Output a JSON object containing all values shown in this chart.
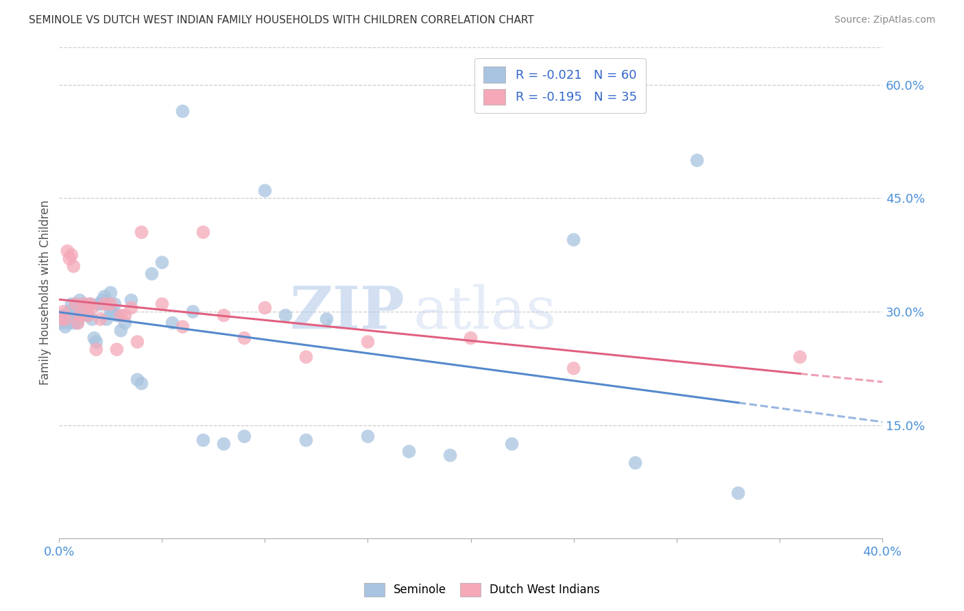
{
  "title": "SEMINOLE VS DUTCH WEST INDIAN FAMILY HOUSEHOLDS WITH CHILDREN CORRELATION CHART",
  "source": "Source: ZipAtlas.com",
  "ylabel_label": "Family Households with Children",
  "right_ytick_pcts": [
    15.0,
    30.0,
    45.0,
    60.0
  ],
  "right_ytick_labels": [
    "15.0%",
    "30.0%",
    "45.0%",
    "60.0%"
  ],
  "xlim": [
    0.0,
    0.4
  ],
  "ylim": [
    0.0,
    0.65
  ],
  "seminole_color": "#a8c4e0",
  "dutch_color": "#f4a8b8",
  "trend_blue": "#5588cc",
  "trend_pink": "#e06080",
  "watermark_zip": "ZIP",
  "watermark_atlas": "atlas",
  "legend_r1": "R = -0.021",
  "legend_n1": "N = 60",
  "legend_r2": "R = -0.195",
  "legend_n2": "N = 35",
  "legend_label1": "Seminole",
  "legend_label2": "Dutch West Indians",
  "seminole_x": [
    0.001,
    0.002,
    0.003,
    0.003,
    0.004,
    0.005,
    0.005,
    0.006,
    0.007,
    0.007,
    0.008,
    0.008,
    0.009,
    0.009,
    0.01,
    0.01,
    0.011,
    0.012,
    0.013,
    0.013,
    0.014,
    0.015,
    0.016,
    0.017,
    0.018,
    0.019,
    0.02,
    0.021,
    0.022,
    0.023,
    0.025,
    0.025,
    0.026,
    0.027,
    0.028,
    0.03,
    0.032,
    0.035,
    0.038,
    0.04,
    0.045,
    0.05,
    0.055,
    0.06,
    0.065,
    0.07,
    0.08,
    0.09,
    0.1,
    0.11,
    0.12,
    0.13,
    0.15,
    0.17,
    0.19,
    0.22,
    0.25,
    0.28,
    0.31,
    0.33
  ],
  "seminole_y": [
    0.285,
    0.295,
    0.28,
    0.29,
    0.285,
    0.3,
    0.29,
    0.31,
    0.295,
    0.285,
    0.31,
    0.295,
    0.3,
    0.285,
    0.315,
    0.3,
    0.295,
    0.31,
    0.305,
    0.3,
    0.295,
    0.31,
    0.29,
    0.265,
    0.26,
    0.31,
    0.31,
    0.315,
    0.32,
    0.29,
    0.325,
    0.3,
    0.3,
    0.31,
    0.295,
    0.275,
    0.285,
    0.315,
    0.21,
    0.205,
    0.35,
    0.365,
    0.285,
    0.565,
    0.3,
    0.13,
    0.125,
    0.135,
    0.46,
    0.295,
    0.13,
    0.29,
    0.135,
    0.115,
    0.11,
    0.125,
    0.395,
    0.1,
    0.5,
    0.06
  ],
  "dutch_x": [
    0.001,
    0.002,
    0.003,
    0.004,
    0.005,
    0.006,
    0.007,
    0.008,
    0.009,
    0.01,
    0.012,
    0.014,
    0.015,
    0.016,
    0.018,
    0.02,
    0.022,
    0.025,
    0.028,
    0.03,
    0.032,
    0.035,
    0.038,
    0.04,
    0.05,
    0.06,
    0.07,
    0.08,
    0.09,
    0.1,
    0.12,
    0.15,
    0.2,
    0.25,
    0.36
  ],
  "dutch_y": [
    0.29,
    0.3,
    0.29,
    0.38,
    0.37,
    0.375,
    0.36,
    0.31,
    0.285,
    0.295,
    0.31,
    0.295,
    0.31,
    0.305,
    0.25,
    0.29,
    0.31,
    0.31,
    0.25,
    0.295,
    0.295,
    0.305,
    0.26,
    0.405,
    0.31,
    0.28,
    0.405,
    0.295,
    0.265,
    0.305,
    0.24,
    0.26,
    0.265,
    0.225,
    0.24
  ]
}
